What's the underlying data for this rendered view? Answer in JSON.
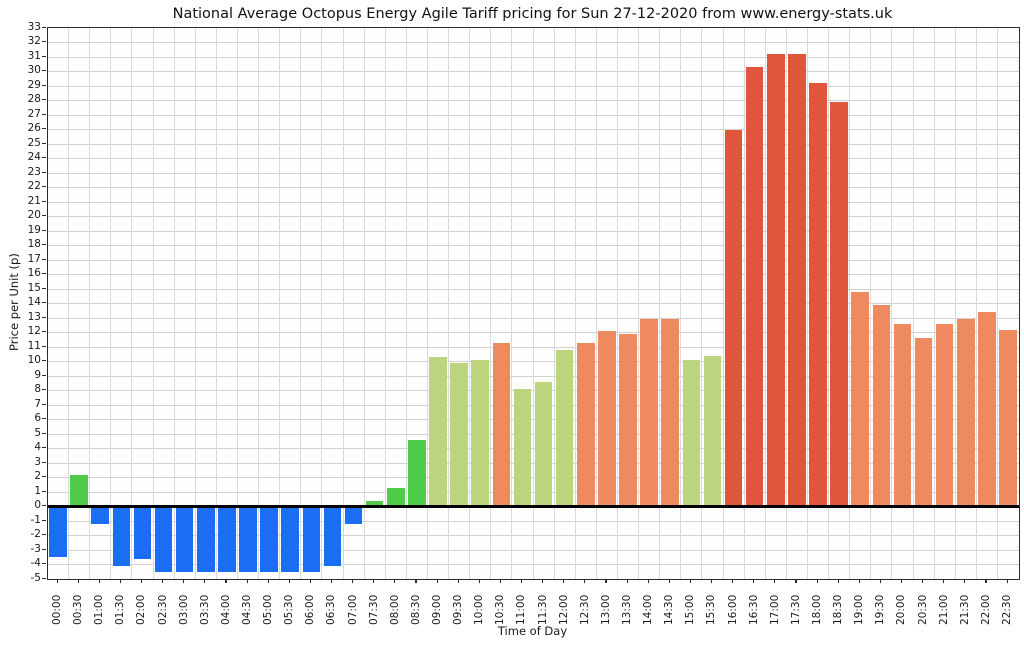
{
  "chart_data": {
    "type": "bar",
    "title": "National Average Octopus Energy Agile Tariff pricing for Sun 27-12-2020 from www.energy-stats.uk",
    "xlabel": "Time of Day",
    "ylabel": "Price per Unit (p)",
    "ylim": [
      -5,
      33
    ],
    "ytick_step": 1,
    "grid": true,
    "legend": "none",
    "categories": [
      "00:00",
      "00:30",
      "01:00",
      "01:30",
      "02:00",
      "02:30",
      "03:00",
      "03:30",
      "04:00",
      "04:30",
      "05:00",
      "05:30",
      "06:00",
      "06:30",
      "07:00",
      "07:30",
      "08:00",
      "08:30",
      "09:00",
      "09:30",
      "10:00",
      "10:30",
      "11:00",
      "11:30",
      "12:00",
      "12:30",
      "13:00",
      "13:30",
      "14:00",
      "14:30",
      "15:00",
      "15:30",
      "16:00",
      "16:30",
      "17:00",
      "17:30",
      "18:00",
      "18:30",
      "19:00",
      "19:30",
      "20:00",
      "20:30",
      "21:00",
      "21:30",
      "22:00",
      "22:30"
    ],
    "values": [
      -3.5,
      2.2,
      -1.2,
      -4.1,
      -3.6,
      -4.5,
      -4.5,
      -4.5,
      -4.5,
      -4.5,
      -4.5,
      -4.5,
      -4.5,
      -4.1,
      -1.2,
      0.4,
      1.3,
      4.6,
      10.3,
      9.9,
      10.1,
      11.3,
      8.1,
      8.6,
      10.8,
      11.3,
      12.1,
      11.9,
      12.9,
      12.9,
      10.1,
      10.4,
      26.0,
      30.3,
      31.2,
      31.2,
      29.2,
      27.9,
      14.8,
      13.9,
      12.6,
      11.6,
      12.6,
      12.9,
      13.4,
      12.2
    ],
    "colors": {
      "negative": "#1b6ef3",
      "cheap": "#4ecb48",
      "moderate": "#bcd47e",
      "high": "#ee8960",
      "peak": "#e0563d"
    },
    "color_thresholds": {
      "cheap_max": 5,
      "moderate_max": 11,
      "high_max": 16
    }
  }
}
